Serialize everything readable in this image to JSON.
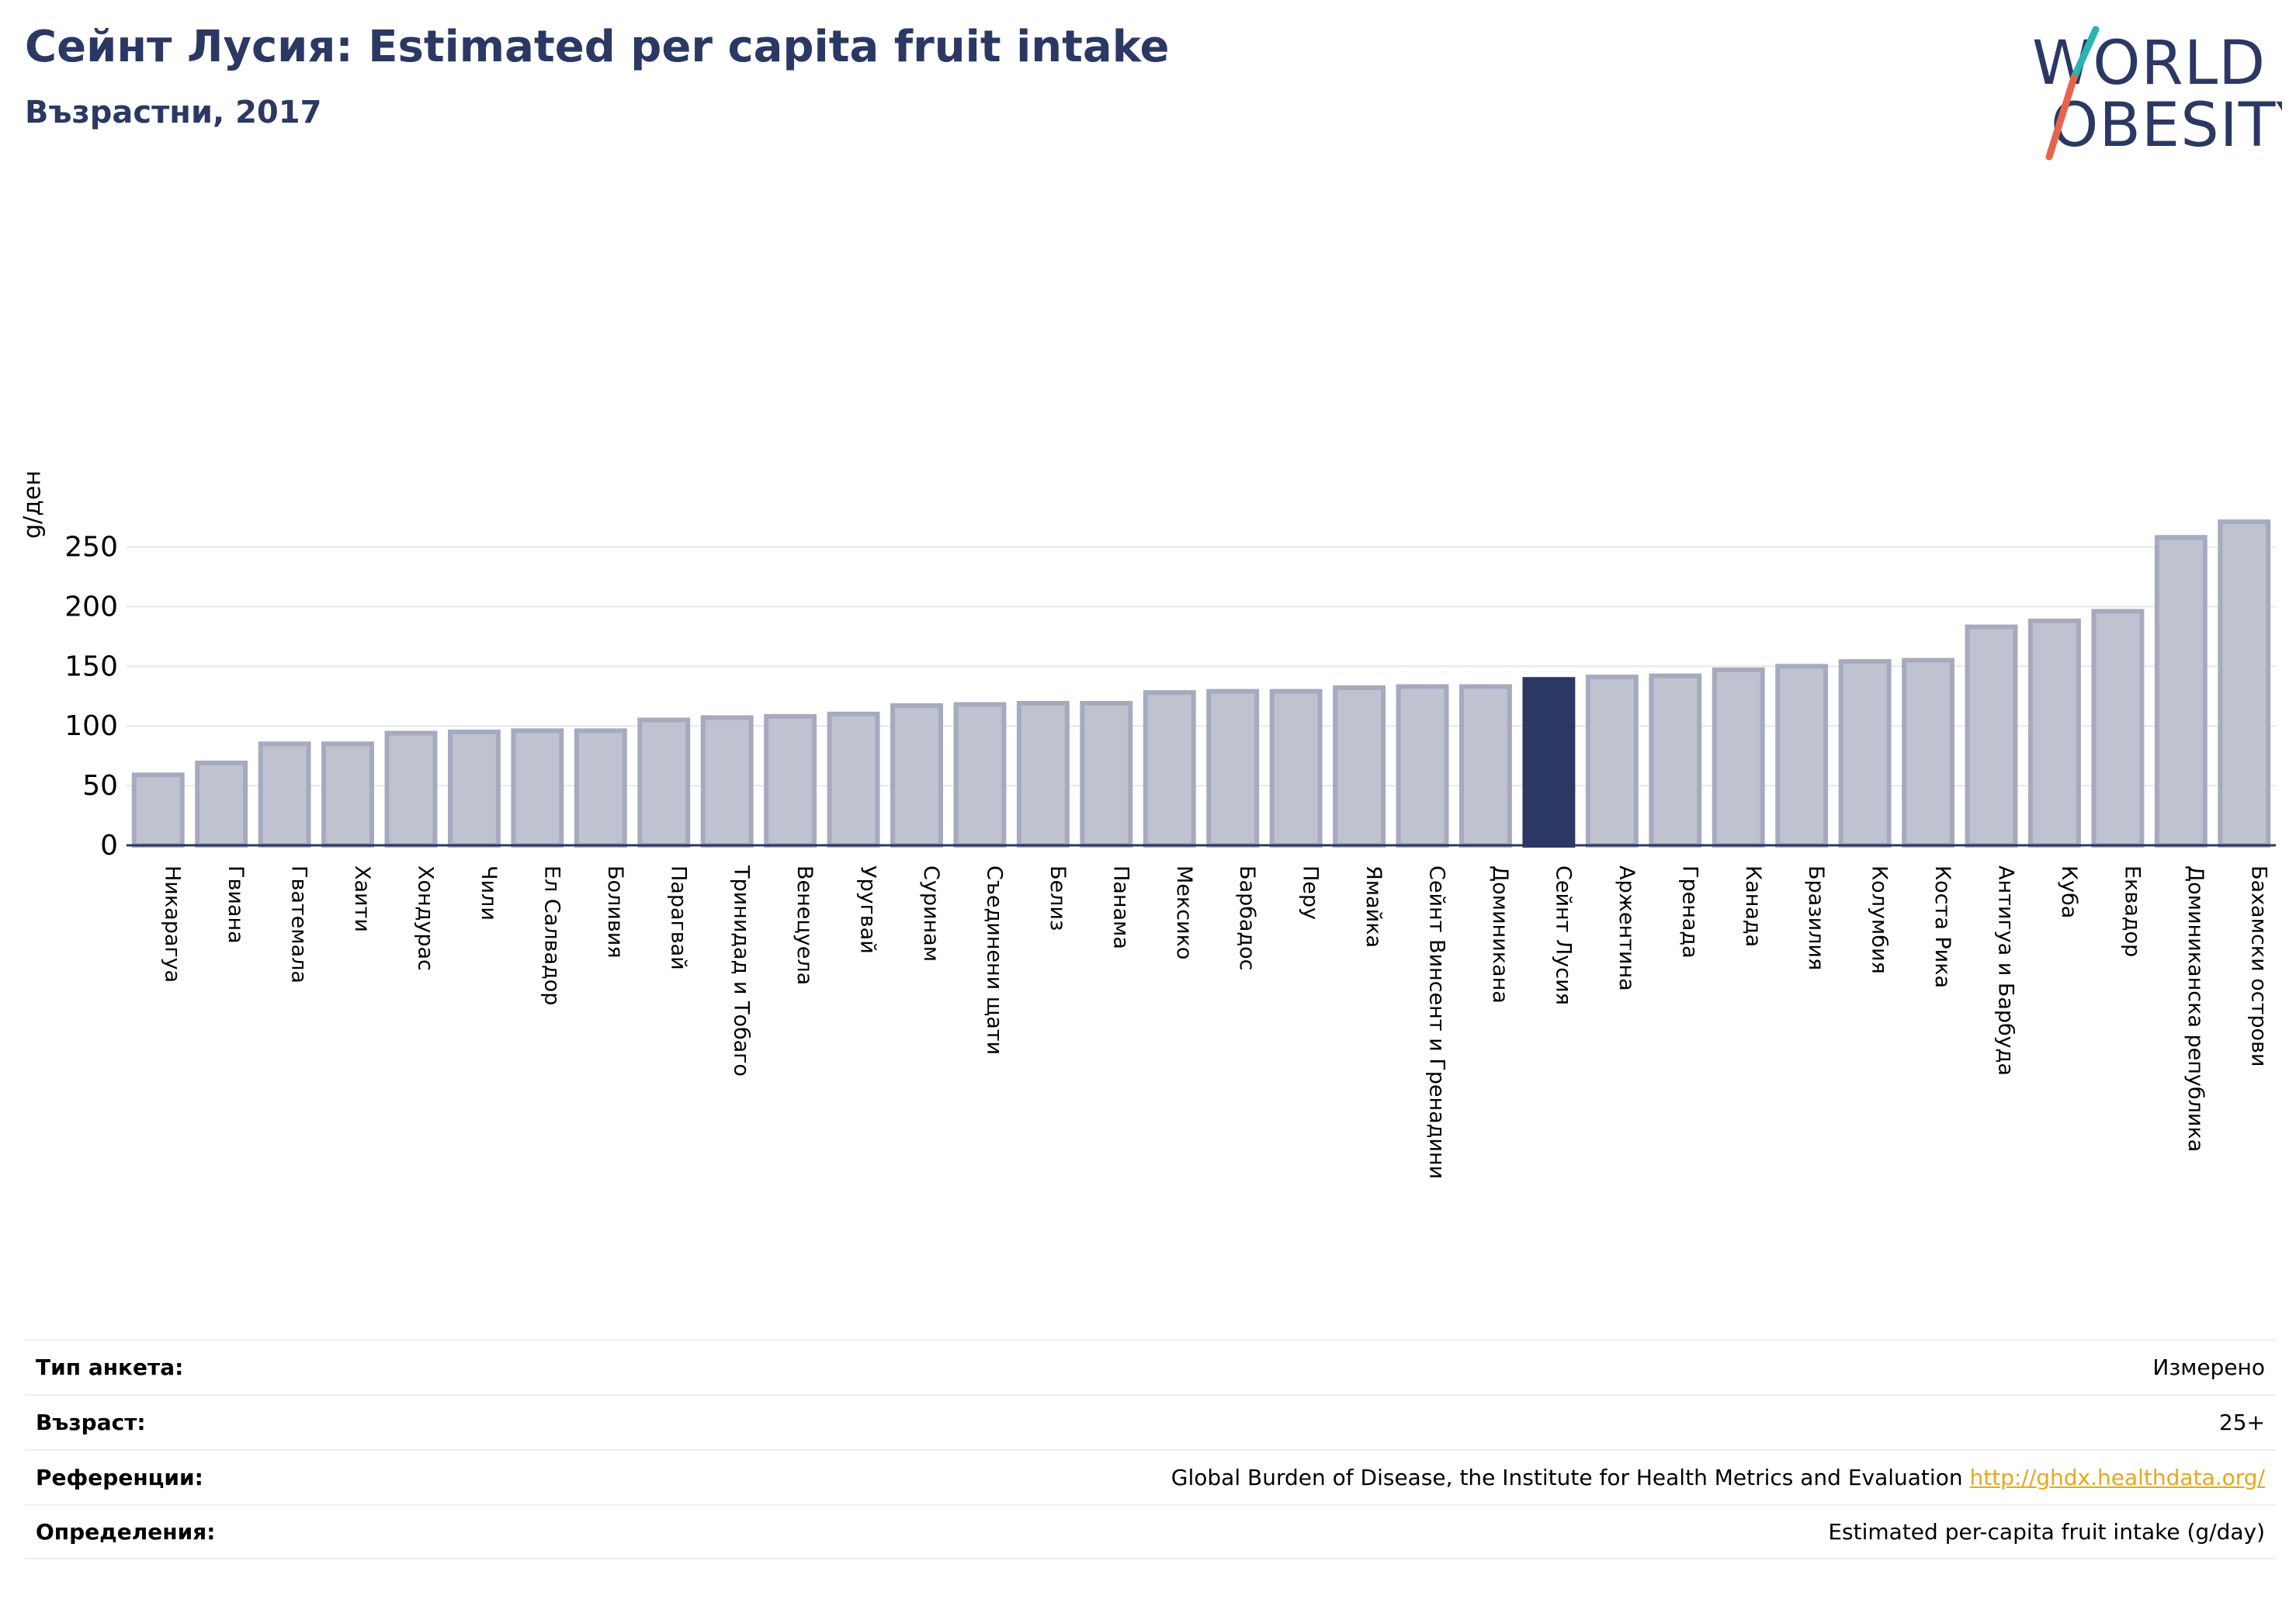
{
  "header": {
    "title": "Сейнт Лусия: Estimated per capita fruit intake",
    "subtitle": "Възрастни, 2017"
  },
  "logo": {
    "line1": "WORLD",
    "line2": "OBESITY"
  },
  "colors": {
    "bar": "#bfc2cf",
    "bar_border": "#a6aabe",
    "highlight": "#2b3864",
    "grid": "#e6e8ee",
    "axis": "#2b3864"
  },
  "chart_data": {
    "type": "bar",
    "ylabel": "g/ден",
    "xlabel": "",
    "ylim": [
      0,
      275
    ],
    "yticks": [
      0,
      50,
      100,
      150,
      200,
      250
    ],
    "highlight": "Сейнт Лусия",
    "categories": [
      "Никарагуа",
      "Гвиана",
      "Гватемала",
      "Хаити",
      "Хондурас",
      "Чили",
      "Ел Салвадор",
      "Боливия",
      "Парагвай",
      "Тринидад и Тобаго",
      "Венецуела",
      "Уругвай",
      "Суринам",
      "Съединени щати",
      "Белиз",
      "Панама",
      "Мексико",
      "Барбадос",
      "Перу",
      "Ямайка",
      "Сейнт Винсент и Гренадини",
      "Доминикана",
      "Сейнт Лусия",
      "Аржентина",
      "Гренада",
      "Канада",
      "Бразилия",
      "Колумбия",
      "Коста Рика",
      "Антигуа и Барбуда",
      "Куба",
      "Еквадор",
      "Доминиканска република",
      "Бахамски острови"
    ],
    "values": [
      59,
      69,
      85,
      85,
      94,
      95,
      96,
      96,
      105,
      107,
      108,
      110,
      117,
      118,
      119,
      119,
      128,
      129,
      129,
      132,
      133,
      133,
      139,
      141,
      142,
      147,
      150,
      154,
      155,
      183,
      188,
      196,
      258,
      271
    ],
    "grid": true,
    "legend": "none"
  },
  "footer": {
    "rows": [
      {
        "label": "Тип анкета:",
        "value": "Измерено"
      },
      {
        "label": "Възраст:",
        "value": "25+"
      },
      {
        "label": "Референции:",
        "value": "Global Burden of Disease, the Institute for Health Metrics and Evaluation",
        "link": "http://ghdx.healthdata.org/"
      },
      {
        "label": "Определения:",
        "value": "Estimated per-capita fruit intake (g/day)"
      }
    ]
  }
}
